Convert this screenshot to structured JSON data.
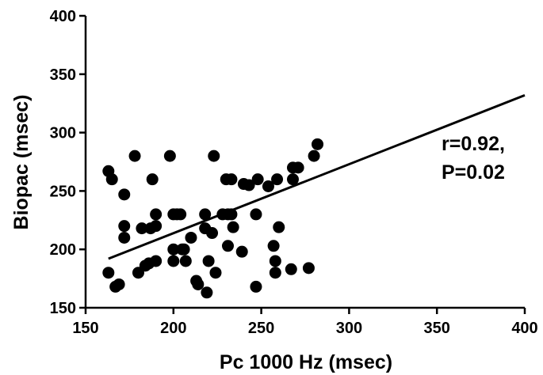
{
  "chart_data": {
    "type": "scatter",
    "xlabel": "Pc 1000 Hz (msec)",
    "ylabel": "Biopac (msec)",
    "xlim": [
      150,
      400
    ],
    "ylim": [
      150,
      400
    ],
    "xticks": [
      "150",
      "200",
      "250",
      "300",
      "350",
      "400"
    ],
    "yticks": [
      "150",
      "200",
      "250",
      "300",
      "350",
      "400"
    ],
    "grid": false,
    "annotation": {
      "line1": "r=0.92,",
      "line2": "P=0.02"
    },
    "regression_line": {
      "x": [
        163,
        400
      ],
      "y": [
        192,
        332
      ]
    },
    "series": [
      {
        "marker_color": "#000000",
        "points": [
          [
            163,
            267
          ],
          [
            165,
            260
          ],
          [
            163,
            180
          ],
          [
            167,
            168
          ],
          [
            169,
            170
          ],
          [
            172,
            247
          ],
          [
            172,
            220
          ],
          [
            172,
            210
          ],
          [
            178,
            280
          ],
          [
            180,
            180
          ],
          [
            182,
            218
          ],
          [
            184,
            186
          ],
          [
            186,
            188
          ],
          [
            187,
            218
          ],
          [
            188,
            260
          ],
          [
            190,
            230
          ],
          [
            190,
            220
          ],
          [
            190,
            190
          ],
          [
            198,
            280
          ],
          [
            200,
            230
          ],
          [
            200,
            200
          ],
          [
            200,
            190
          ],
          [
            202,
            230
          ],
          [
            204,
            230
          ],
          [
            205,
            200
          ],
          [
            206,
            200
          ],
          [
            207,
            190
          ],
          [
            210,
            210
          ],
          [
            213,
            173
          ],
          [
            214,
            170
          ],
          [
            218,
            230
          ],
          [
            218,
            218
          ],
          [
            219,
            163
          ],
          [
            220,
            190
          ],
          [
            222,
            214
          ],
          [
            223,
            280
          ],
          [
            224,
            180
          ],
          [
            228,
            230
          ],
          [
            230,
            260
          ],
          [
            231,
            230
          ],
          [
            231,
            203
          ],
          [
            233,
            260
          ],
          [
            233,
            230
          ],
          [
            234,
            219
          ],
          [
            239,
            198
          ],
          [
            240,
            256
          ],
          [
            243,
            255
          ],
          [
            247,
            230
          ],
          [
            247,
            168
          ],
          [
            248,
            260
          ],
          [
            254,
            254
          ],
          [
            257,
            203
          ],
          [
            258,
            190
          ],
          [
            258,
            180
          ],
          [
            259,
            260
          ],
          [
            260,
            219
          ],
          [
            267,
            183
          ],
          [
            268,
            270
          ],
          [
            268,
            260
          ],
          [
            271,
            270
          ],
          [
            277,
            184
          ],
          [
            280,
            280
          ],
          [
            282,
            290
          ]
        ]
      }
    ]
  }
}
